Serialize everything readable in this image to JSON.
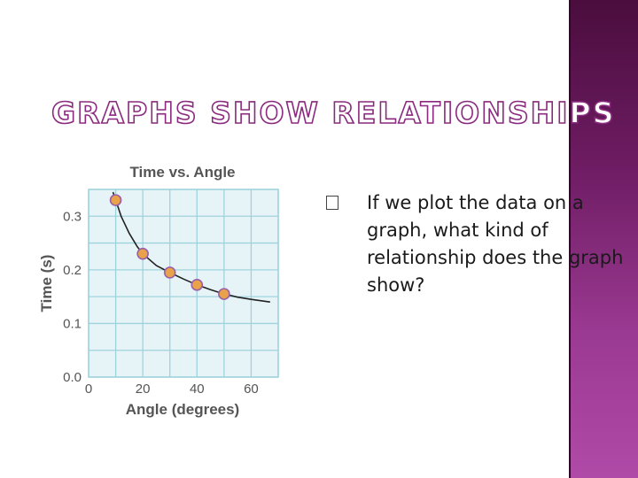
{
  "slide": {
    "title": "GRAPHS SHOW RELATIONSHIPS",
    "bullet_text": "If we plot the data on a graph, what kind of relationship does the graph show?"
  },
  "chart_data": {
    "type": "scatter",
    "title": "Time vs. Angle",
    "xlabel": "Angle (degrees)",
    "ylabel": "Time (s)",
    "xlim": [
      0,
      70
    ],
    "ylim": [
      0,
      0.35
    ],
    "xticks": [
      0,
      20,
      40,
      60
    ],
    "yticks": [
      0.0,
      0.1,
      0.2,
      0.3
    ],
    "ytick_labels": [
      "0.0",
      "0.1",
      "0.2",
      "0.3"
    ],
    "grid": true,
    "x": [
      10,
      20,
      30,
      40,
      50
    ],
    "y": [
      0.33,
      0.23,
      0.195,
      0.172,
      0.155
    ],
    "trend_curve": {
      "x": [
        9,
        10,
        12,
        15,
        18,
        20,
        25,
        30,
        35,
        40,
        45,
        50,
        55,
        60,
        67
      ],
      "y": [
        0.345,
        0.33,
        0.3,
        0.268,
        0.243,
        0.23,
        0.208,
        0.195,
        0.183,
        0.172,
        0.163,
        0.155,
        0.149,
        0.145,
        0.14
      ]
    },
    "colors": {
      "grid_bg": "#e6f4f7",
      "grid_line": "#9fd3dc",
      "marker_fill": "#e8a24a",
      "marker_edge": "#9a5fa8",
      "curve": "#222222"
    }
  }
}
